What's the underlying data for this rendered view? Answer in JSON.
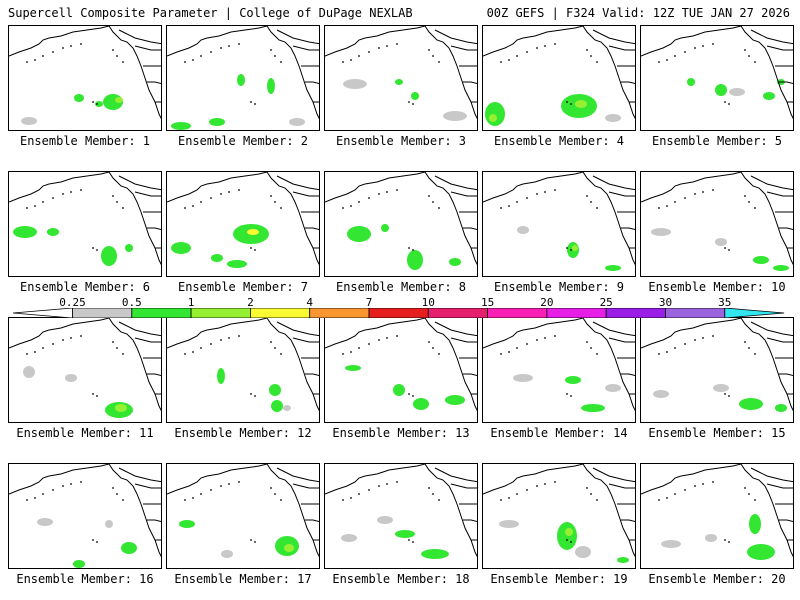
{
  "header": {
    "title": "Supercell Composite Parameter | College of DuPage NEXLAB",
    "run_info": "00Z GEFS | F324 Valid: 12Z TUE JAN 27 2026"
  },
  "panels": [
    {
      "label": "Ensemble Member: 1"
    },
    {
      "label": "Ensemble Member: 2"
    },
    {
      "label": "Ensemble Member: 3"
    },
    {
      "label": "Ensemble Member: 4"
    },
    {
      "label": "Ensemble Member: 5"
    },
    {
      "label": "Ensemble Member: 6"
    },
    {
      "label": "Ensemble Member: 7"
    },
    {
      "label": "Ensemble Member: 8"
    },
    {
      "label": "Ensemble Member: 9"
    },
    {
      "label": "Ensemble Member: 10"
    },
    {
      "label": "Ensemble Member: 11"
    },
    {
      "label": "Ensemble Member: 12"
    },
    {
      "label": "Ensemble Member: 13"
    },
    {
      "label": "Ensemble Member: 14"
    },
    {
      "label": "Ensemble Member: 15"
    },
    {
      "label": "Ensemble Member: 16"
    },
    {
      "label": "Ensemble Member: 17"
    },
    {
      "label": "Ensemble Member: 18"
    },
    {
      "label": "Ensemble Member: 19"
    },
    {
      "label": "Ensemble Member: 20"
    }
  ],
  "legend": {
    "ticks": [
      "0.25",
      "0.5",
      "1",
      "2",
      "4",
      "7",
      "10",
      "15",
      "20",
      "25",
      "30",
      "35"
    ],
    "colors": [
      "#c8c8c8",
      "#32e632",
      "#96f032",
      "#fafa32",
      "#fa9632",
      "#e61e1e",
      "#e61e6e",
      "#fa1eb4",
      "#e61ee6",
      "#9b1ee6",
      "#9b64dc",
      "#32e6f0"
    ]
  }
}
